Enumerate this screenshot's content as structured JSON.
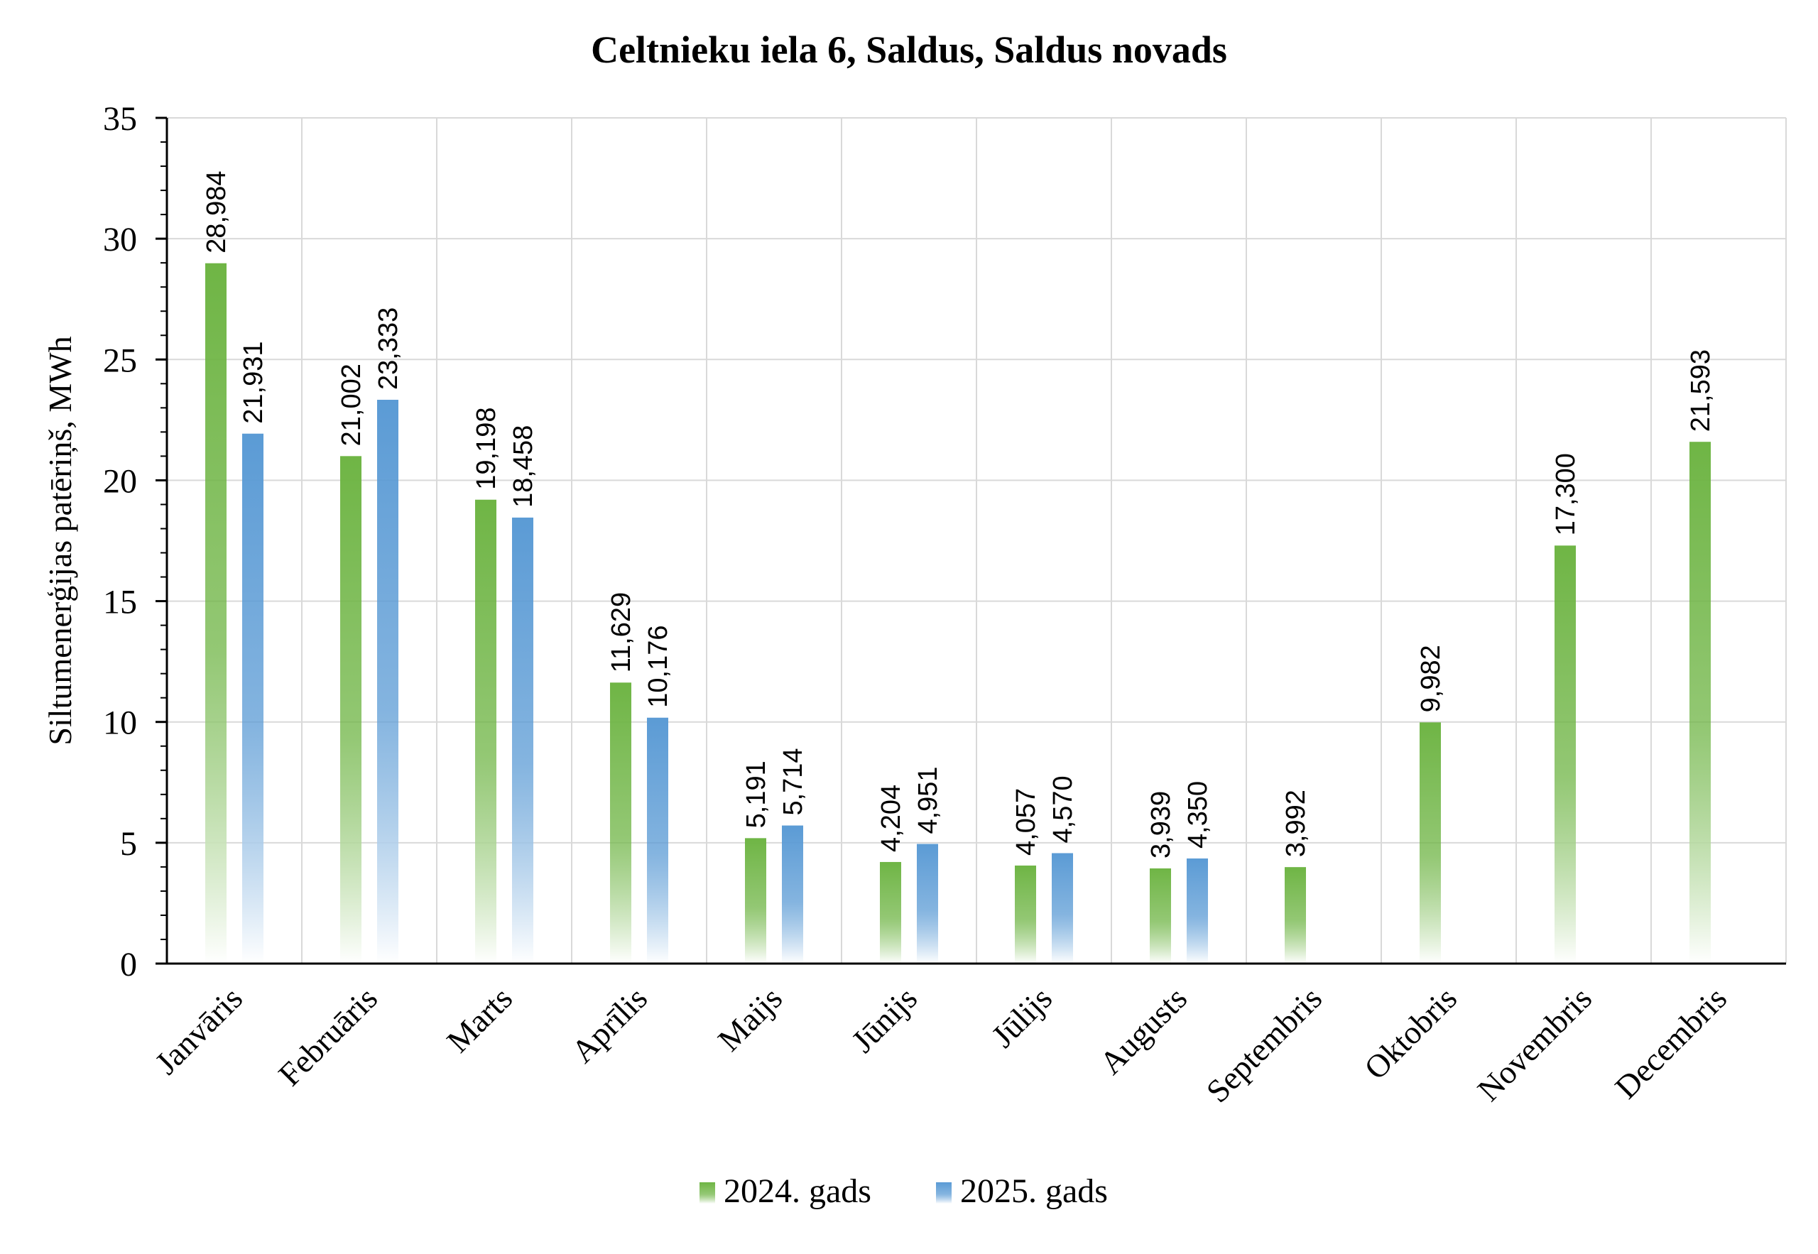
{
  "chart_data": {
    "type": "bar",
    "title": "Celtnieku iela 6, Saldus, Saldus novads",
    "xlabel": "",
    "ylabel": "Siltumenerģijas patēriņš, MWh",
    "ylim": [
      0,
      35
    ],
    "yticks": [
      0,
      5,
      10,
      15,
      20,
      25,
      30,
      35
    ],
    "grid": true,
    "legend_position": "bottom",
    "categories": [
      "Janvāris",
      "Februāris",
      "Marts",
      "Aprīlis",
      "Maijs",
      "Jūnijs",
      "Jūlijs",
      "Augusts",
      "Septembris",
      "Oktobris",
      "Novembris",
      "Decembris"
    ],
    "series": [
      {
        "name": "2024. gads",
        "color": "#6fb545",
        "values": [
          28.984,
          21.002,
          19.198,
          11.629,
          5.191,
          4.204,
          4.057,
          3.939,
          3.992,
          9.982,
          17.3,
          21.593
        ],
        "labels": [
          "28,984",
          "21,002",
          "19,198",
          "11,629",
          "5,191",
          "4,204",
          "4,057",
          "3,939",
          "3,992",
          "9,982",
          "17,300",
          "21,593"
        ]
      },
      {
        "name": "2025. gads",
        "color": "#5b9bd5",
        "values": [
          21.931,
          23.333,
          18.458,
          10.176,
          5.714,
          4.951,
          4.57,
          4.35,
          null,
          null,
          null,
          null
        ],
        "labels": [
          "21,931",
          "23,333",
          "18,458",
          "10,176",
          "5,714",
          "4,951",
          "4,570",
          "4,350",
          "",
          "",
          "",
          ""
        ]
      }
    ]
  }
}
